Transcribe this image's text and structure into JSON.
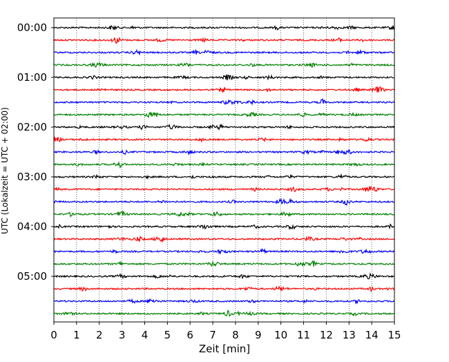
{
  "chart_data": {
    "type": "line",
    "subtype": "helicorder",
    "xlabel": "Zeit  [min]",
    "ylabel": "UTC (Lokalzeit = UTC + 02:00)",
    "xlim": [
      0,
      15
    ],
    "x_ticks": [
      "0",
      "1",
      "2",
      "3",
      "4",
      "5",
      "6",
      "7",
      "8",
      "9",
      "10",
      "11",
      "12",
      "13",
      "14",
      "15"
    ],
    "y_ticks": [
      "00:00",
      "01:00",
      "02:00",
      "03:00",
      "04:00",
      "05:00"
    ],
    "trace_interval_min": 15,
    "trace_count": 24,
    "trace_colors": [
      "#000000",
      "#ff0000",
      "#0000ff",
      "#008000"
    ],
    "grid": {
      "vertical": true,
      "style": "dotted"
    }
  }
}
